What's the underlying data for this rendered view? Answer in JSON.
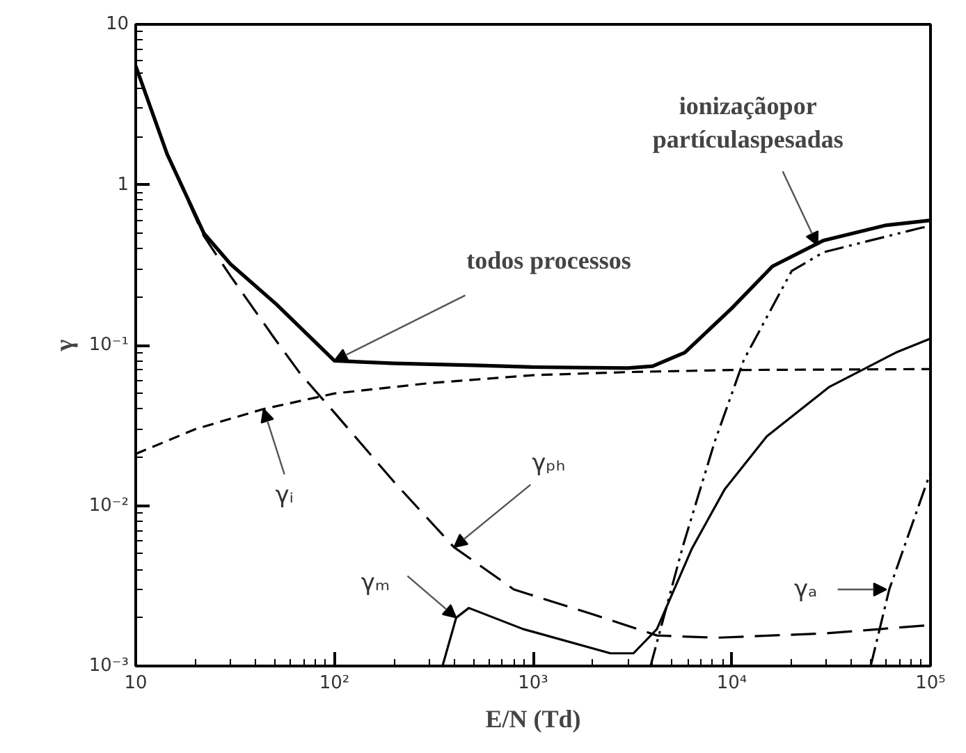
{
  "chart_data": {
    "type": "line",
    "xlabel": "E/N (Td)",
    "ylabel": "γ",
    "log": "xy",
    "grid": false,
    "xlim": [
      10,
      100000
    ],
    "ylim": [
      0.001,
      10
    ],
    "xticks": [
      {
        "value": 10,
        "label": "10"
      },
      {
        "value": 100,
        "label": "10²"
      },
      {
        "value": 1000,
        "label": "10³"
      },
      {
        "value": 10000,
        "label": "10⁴"
      },
      {
        "value": 100000,
        "label": "10⁵"
      }
    ],
    "yticks": [
      {
        "value": 0.001,
        "label": "10⁻³"
      },
      {
        "value": 0.01,
        "label": "10⁻²"
      },
      {
        "value": 0.1,
        "label": "10⁻¹"
      },
      {
        "value": 1,
        "label": "1"
      },
      {
        "value": 10,
        "label": "10"
      }
    ],
    "series": [
      {
        "color": "#000000",
        "line_style": "solid",
        "x": [
          10,
          14.4,
          22,
          30,
          51,
          100,
          200,
          500,
          1000,
          3000,
          4000,
          5800,
          10000,
          16000,
          29000,
          60000,
          100000
        ],
        "values": [
          5.5,
          1.55,
          0.5,
          0.32,
          0.18,
          0.08,
          0.077,
          0.075,
          0.073,
          0.072,
          0.074,
          0.09,
          0.17,
          0.31,
          0.45,
          0.56,
          0.6
        ]
      },
      {
        "color": "#000000",
        "line_style": "dashed",
        "x": [
          10,
          20,
          44,
          100,
          300,
          1000,
          3000,
          10000,
          100000
        ],
        "values": [
          0.021,
          0.03,
          0.04,
          0.05,
          0.058,
          0.065,
          0.068,
          0.07,
          0.071
        ]
      },
      {
        "color": "#000000",
        "line_style": "longdash",
        "x": [
          10,
          14.4,
          22,
          30,
          50,
          67,
          100,
          200,
          400,
          800,
          2000,
          4200,
          8300,
          30000,
          100000
        ],
        "values": [
          5.5,
          1.55,
          0.48,
          0.27,
          0.11,
          0.067,
          0.038,
          0.014,
          0.0055,
          0.003,
          0.0021,
          0.00155,
          0.0015,
          0.0016,
          0.0018
        ]
      },
      {
        "color": "#000000",
        "line_style": "solid",
        "x": [
          350,
          410,
          475,
          890,
          2450,
          3200,
          4200,
          6300,
          9200,
          15000,
          31000,
          67000,
          100000
        ],
        "values": [
          0.001,
          0.002,
          0.0023,
          0.0017,
          0.0012,
          0.0012,
          0.0017,
          0.0054,
          0.0126,
          0.027,
          0.055,
          0.09,
          0.11
        ]
      },
      {
        "color": "#000000",
        "line_style": "dashdotdot",
        "x": [
          3900,
          5700,
          8200,
          11500,
          20000,
          29000,
          90000,
          100000
        ],
        "values": [
          0.001,
          0.0057,
          0.025,
          0.081,
          0.29,
          0.38,
          0.54,
          0.55
        ]
      },
      {
        "color": "#000000",
        "line_style": "dashdot",
        "x": [
          50000,
          62000,
          95000,
          100000
        ],
        "values": [
          0.001,
          0.003,
          0.0135,
          0.016
        ]
      }
    ],
    "annotations": [
      {
        "text": "todos processos",
        "x": 100,
        "y": 0.08
      },
      {
        "text": "ionizaçãopor\npartículaspesadas",
        "x": 27000,
        "y": 0.42
      },
      {
        "text": "γᵢ",
        "x": 44,
        "y": 0.04
      },
      {
        "text": "γₚₕ",
        "x": 400,
        "y": 0.0055
      },
      {
        "text": "γₘ",
        "x": 410,
        "y": 0.002
      },
      {
        "text": "γₐ",
        "x": 60000,
        "y": 0.003
      }
    ]
  }
}
